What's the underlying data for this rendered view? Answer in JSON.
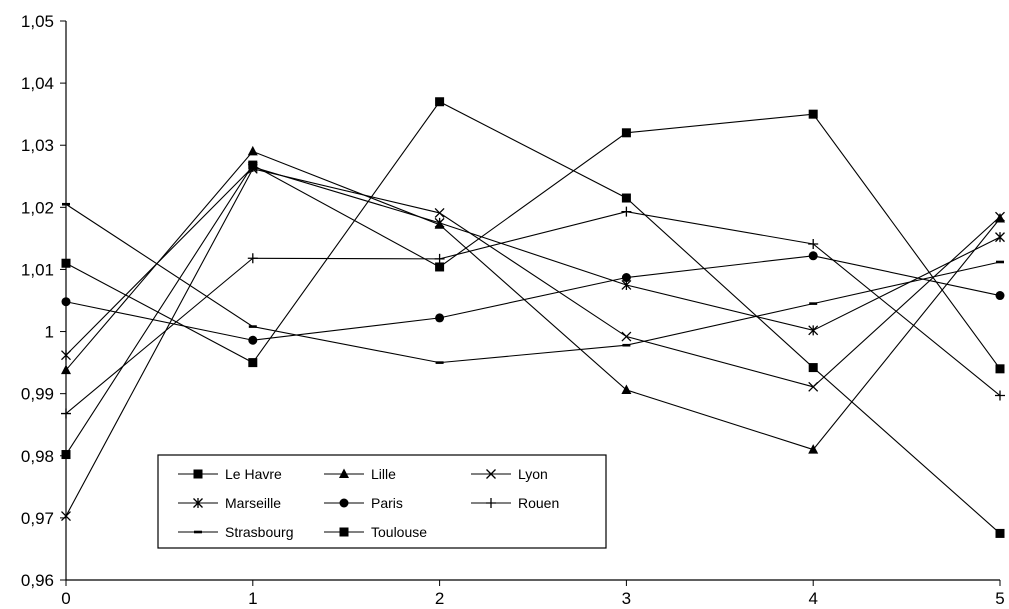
{
  "chart_data": {
    "type": "line",
    "title": "",
    "xlabel": "",
    "ylabel": "",
    "x": [
      0,
      1,
      2,
      3,
      4,
      5
    ],
    "x_tick_labels": [
      "0",
      "1",
      "2",
      "3",
      "4",
      "5"
    ],
    "ylim": [
      0.96,
      1.05
    ],
    "y_ticks": [
      0.96,
      0.97,
      0.98,
      0.99,
      1.0,
      1.01,
      1.02,
      1.03,
      1.04,
      1.05
    ],
    "y_tick_labels": [
      "0,96",
      "0,97",
      "0,98",
      "0,99",
      "1",
      "1,01",
      "1,02",
      "1,03",
      "1,04",
      "1,05"
    ],
    "grid": false,
    "legend_position": "bottom-left",
    "series": [
      {
        "name": "Le Havre",
        "marker": "square",
        "values": [
          1.011,
          0.995,
          1.037,
          1.0215,
          0.9942,
          0.9675
        ]
      },
      {
        "name": "Marseille",
        "marker": "asterisk",
        "values": [
          0.9962,
          1.0265,
          1.0175,
          1.0075,
          1.0002,
          1.0152
        ]
      },
      {
        "name": "Strasbourg",
        "marker": "dash",
        "values": [
          1.0205,
          1.0008,
          0.995,
          0.9978,
          1.0045,
          1.0112
        ]
      },
      {
        "name": "Lille",
        "marker": "triangle",
        "values": [
          0.9938,
          1.029,
          1.0172,
          0.9906,
          0.981,
          1.0182
        ]
      },
      {
        "name": "Paris",
        "marker": "circle",
        "values": [
          1.0048,
          0.9986,
          1.0022,
          1.0087,
          1.0122,
          1.0058
        ]
      },
      {
        "name": "Toulouse",
        "marker": "square",
        "values": [
          0.9802,
          1.0268,
          1.0104,
          1.032,
          1.035,
          0.994
        ]
      },
      {
        "name": "Lyon",
        "marker": "x",
        "values": [
          0.9703,
          1.0262,
          1.0191,
          0.9992,
          0.9911,
          1.0185
        ]
      },
      {
        "name": "Rouen",
        "marker": "plus",
        "values": [
          0.9868,
          1.0118,
          1.0117,
          1.0193,
          1.0141,
          0.9897
        ]
      }
    ]
  }
}
